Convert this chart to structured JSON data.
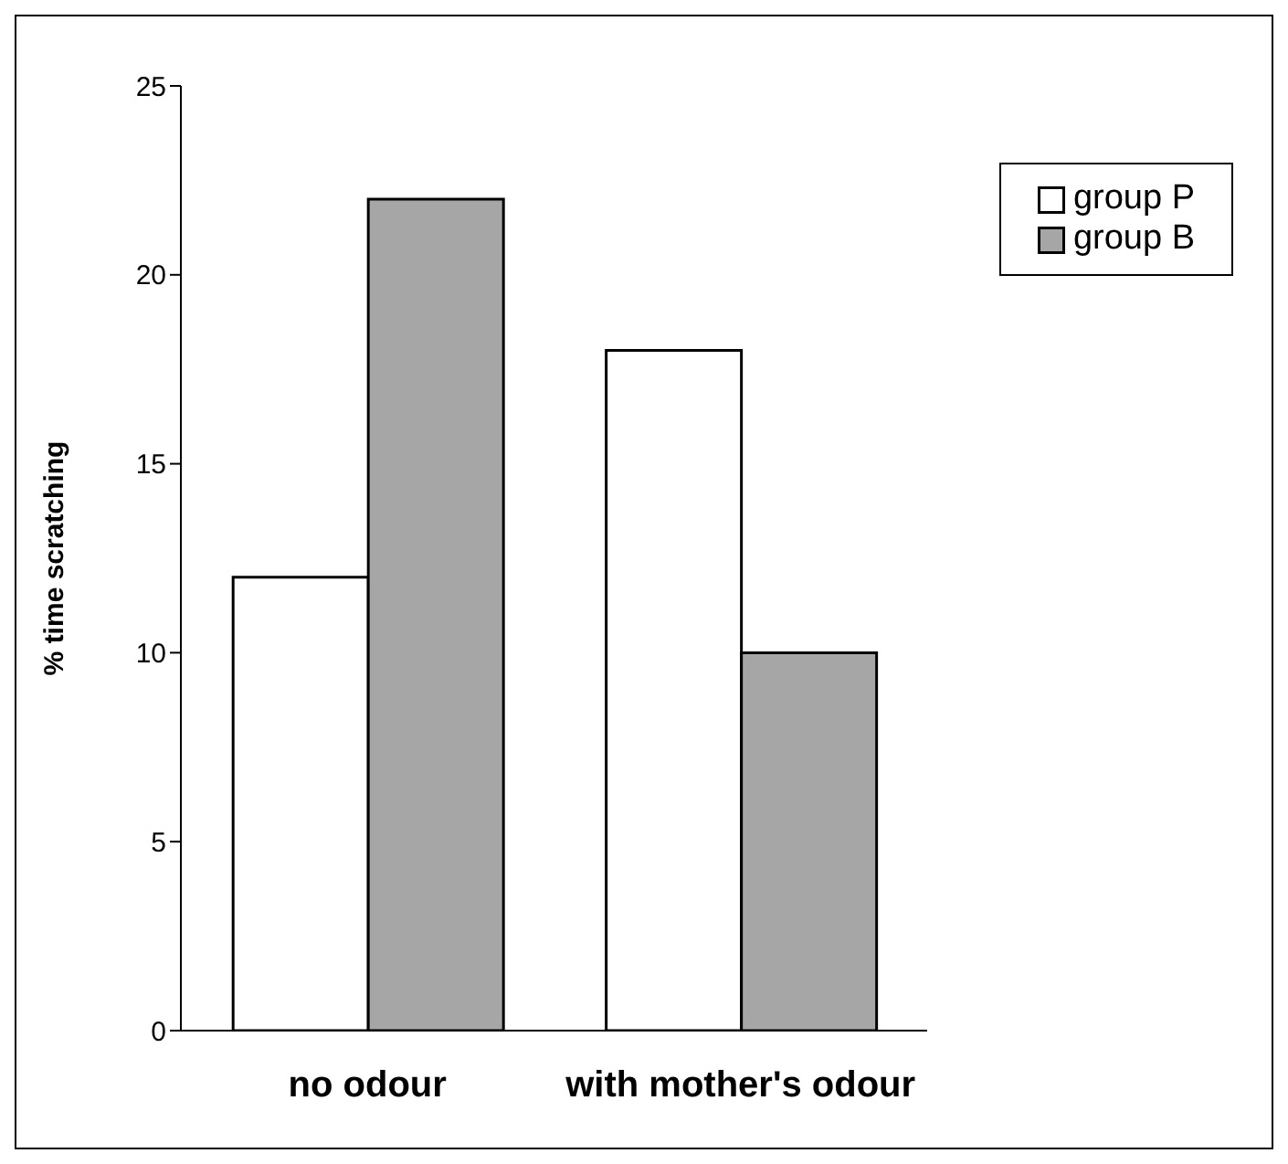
{
  "chart_data": {
    "type": "bar",
    "ylabel": "% time scratching",
    "categories": [
      "no odour",
      "with mother's odour"
    ],
    "series": [
      {
        "name": "group P",
        "color": "#ffffff",
        "values": [
          12,
          18
        ]
      },
      {
        "name": "group B",
        "color": "#a6a6a6",
        "values": [
          22,
          10
        ]
      }
    ],
    "ylim": [
      0,
      25
    ],
    "yticks": [
      0,
      5,
      10,
      15,
      20,
      25
    ],
    "grid": false,
    "legend": "top right"
  }
}
